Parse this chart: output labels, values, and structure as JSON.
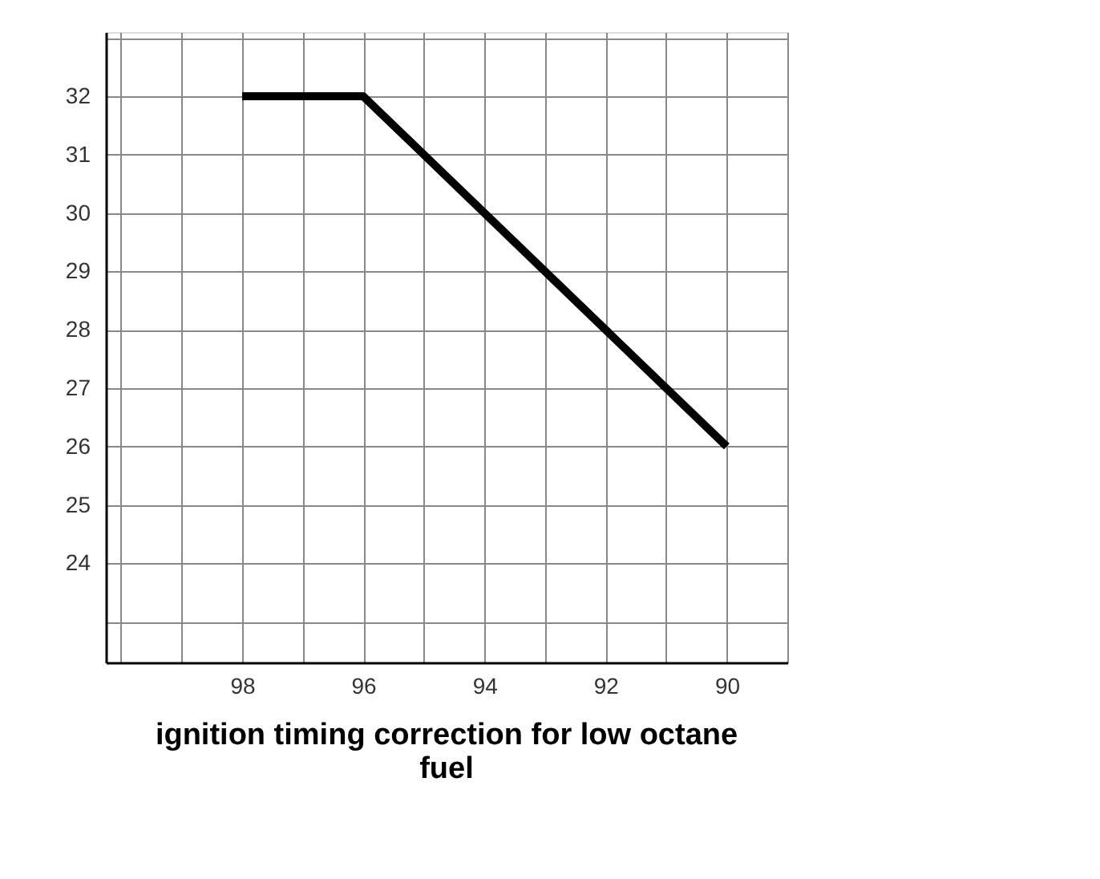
{
  "chart_data": {
    "type": "line",
    "title": "ignition timing correction for low octane fuel",
    "x": [
      98,
      96,
      90
    ],
    "series": [
      {
        "color": "#000000",
        "values": [
          32,
          32,
          26
        ]
      }
    ],
    "xlim": [
      100.25,
      89
    ],
    "xticks": [
      {
        "value": 100,
        "label": null
      },
      {
        "value": 99,
        "label": null
      },
      98,
      {
        "value": 97,
        "label": null
      },
      96,
      {
        "value": 95,
        "label": null
      },
      94,
      {
        "value": 93,
        "label": null
      },
      92,
      {
        "value": 91,
        "label": null
      },
      90,
      {
        "value": 89,
        "label": null
      }
    ],
    "ylim": [
      22.3,
      33.1
    ],
    "yticks": [
      {
        "value": 23,
        "label": null
      },
      24,
      25,
      26,
      27,
      28,
      29,
      30,
      31,
      32,
      {
        "value": 33,
        "label": null
      }
    ],
    "grid": true,
    "marker": "none",
    "line_style": "solid"
  }
}
